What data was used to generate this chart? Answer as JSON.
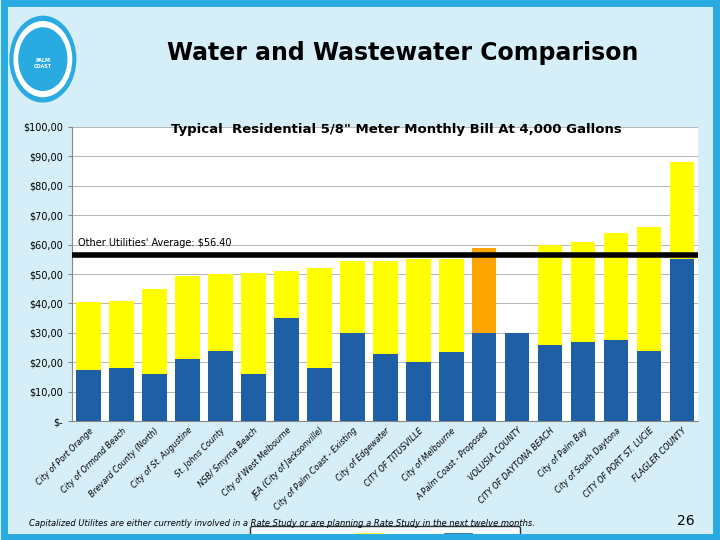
{
  "title": "Water and Wastewater Comparison",
  "subtitle": "Typical  Residential 5/8\" Meter Monthly Bill At 4,000 Gallons",
  "average_label": "Other Utilities' Average: $56.40",
  "average_value": 56.4,
  "footnote": "Capitalized Utilites are either currently involved in a Rate Study or are planning a Rate Study in the next twelve months.",
  "page_number": "26",
  "categories": [
    "City of Port Orange",
    "City of Ormond Beach",
    "Brevard County (North)",
    "City of St. Augustine",
    "St. Johns County",
    "NSB/ Smyrna Beach",
    "City of West Melbourne",
    "JEA (City of Jacksonville)",
    "City of Palm Coast - Existing",
    "City of Edgewater",
    "CITY OF TITUSVILLE",
    "City of Melbourne",
    "A Palm Coast - Proposed",
    "VOLUSIA COUNTY",
    "CITY OF DAYTONA BEACH",
    "City of Palm Bay",
    "City of South Daytona",
    "CITY OF PORT ST. LUCIE",
    "FLAGLER COUNTY"
  ],
  "water_values": [
    17.5,
    18.0,
    16.0,
    21.0,
    24.0,
    16.0,
    35.0,
    18.0,
    30.0,
    23.0,
    20.0,
    23.5,
    30.0,
    30.0,
    26.0,
    27.0,
    27.5,
    24.0,
    55.0
  ],
  "sewer_values": [
    23.0,
    23.0,
    29.0,
    28.5,
    26.0,
    34.5,
    16.0,
    34.0,
    24.5,
    31.5,
    35.0,
    31.5,
    29.0,
    0.0,
    34.0,
    34.0,
    36.5,
    42.0,
    33.0
  ],
  "water_color": "#1F5FA6",
  "sewer_color": "#FFFF00",
  "orange_color": "#FFA500",
  "average_line_color": "#000000",
  "ylim": [
    0,
    100
  ],
  "yticks": [
    0,
    10,
    20,
    30,
    40,
    50,
    60,
    70,
    80,
    90,
    100
  ],
  "ytick_labels": [
    "$-",
    "$10,00",
    "$20,00",
    "$30,00",
    "$40,00",
    "$50,00",
    "$60,00",
    "$70,00",
    "$80,00",
    "$90,00",
    "$100,00"
  ],
  "background_color": "#FFFFFF",
  "slide_bg": "#D6EEF8",
  "border_color": "#29ABE2",
  "title_color": "#000000",
  "grid_color": "#AAAAAA"
}
